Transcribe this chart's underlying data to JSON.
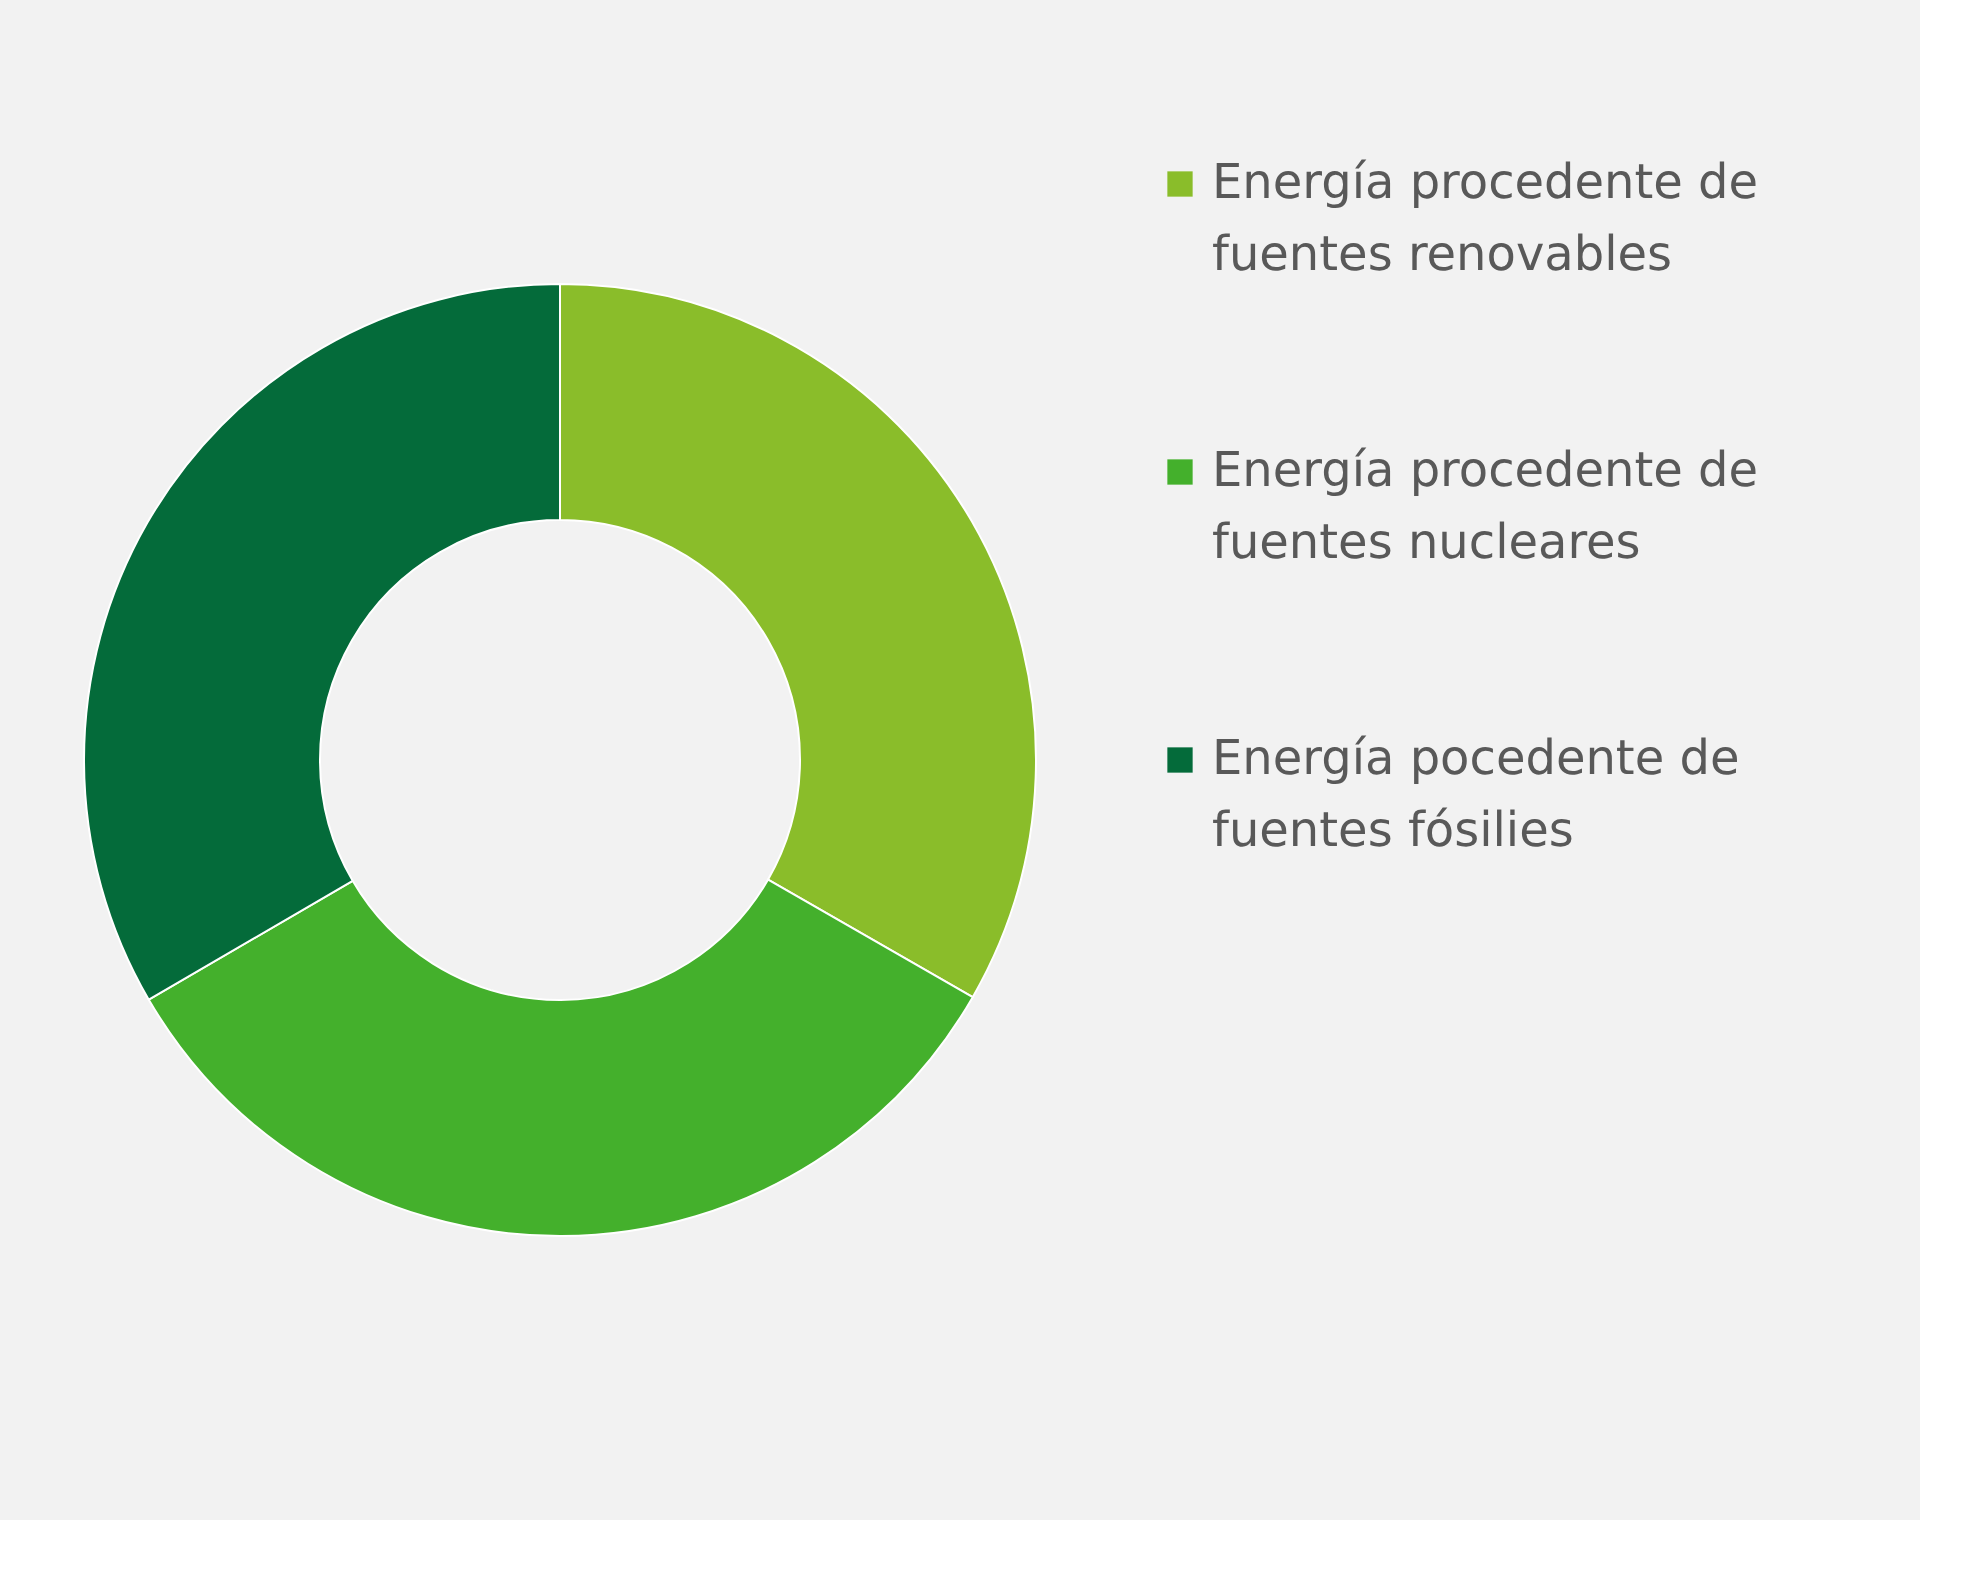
{
  "chart_data": {
    "type": "donut",
    "categories": [
      "Energía procedente de fuentes renovables",
      "Energía procedente de fuentes nucleares",
      "Energía pocedente de fuentes fósilies"
    ],
    "values": [
      33.3,
      33.3,
      33.4
    ],
    "colors": [
      "#8abd2a",
      "#44b02c",
      "#046b3a"
    ],
    "legend": "right"
  }
}
